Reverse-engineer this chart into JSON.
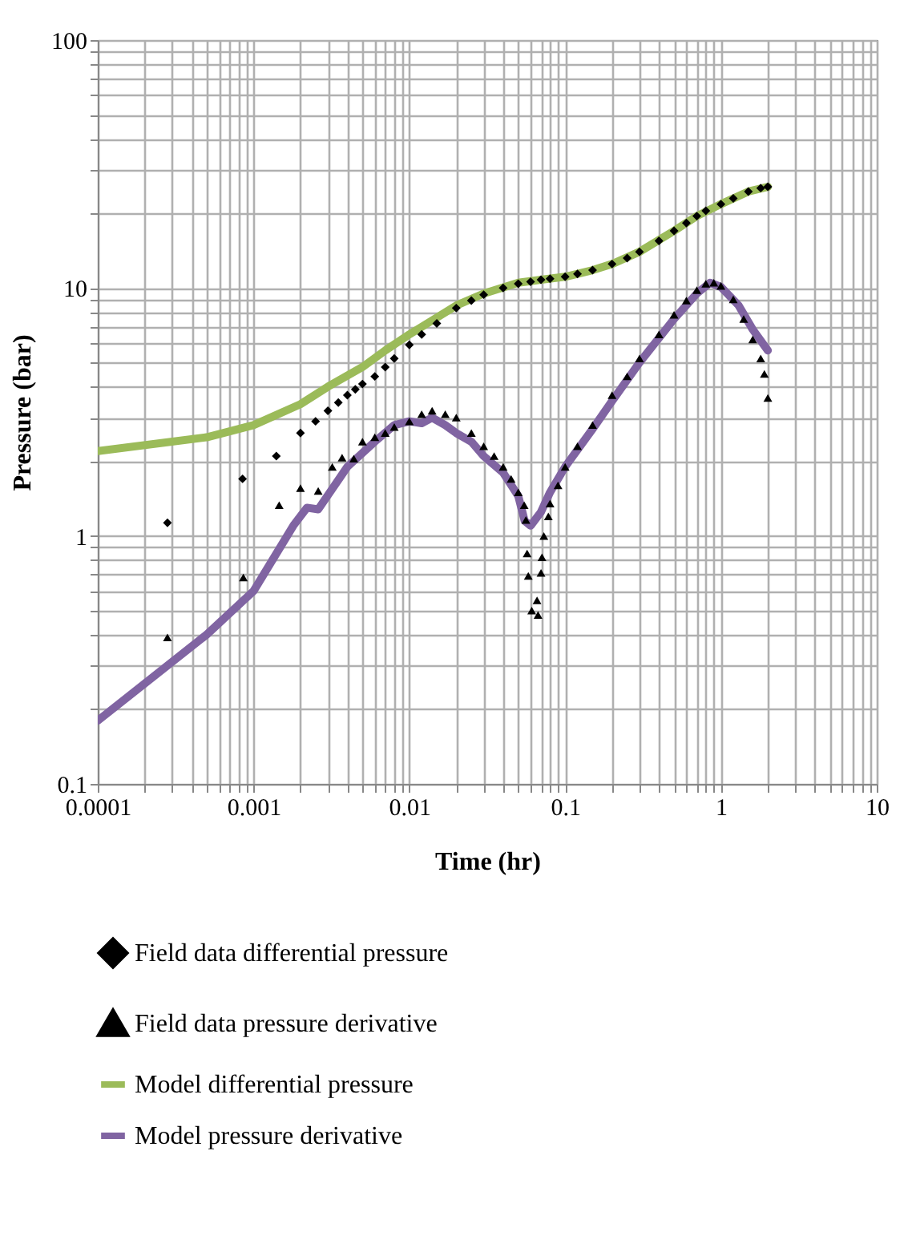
{
  "chart_data": {
    "type": "scatter",
    "xlabel": "Time (hr)",
    "ylabel": "Pressure (bar)",
    "log": "xy",
    "grid": true,
    "legend": "bottom",
    "xlim": [
      0.0001,
      10
    ],
    "xticks": [
      0.0001,
      0.001,
      0.01,
      0.1,
      1,
      10
    ],
    "ylim": [
      0.1,
      100
    ],
    "yticks": [
      0.1,
      1,
      10,
      100
    ],
    "series": [
      {
        "name": "Field data differential pressure",
        "marker": "diamond",
        "color": "#000000",
        "x": [
          0.00028,
          0.00085,
          0.0014,
          0.002,
          0.0025,
          0.003,
          0.0035,
          0.004,
          0.0045,
          0.005,
          0.006,
          0.007,
          0.008,
          0.01,
          0.012,
          0.015,
          0.02,
          0.025,
          0.03,
          0.04,
          0.05,
          0.06,
          0.07,
          0.08,
          0.1,
          0.12,
          0.15,
          0.2,
          0.25,
          0.3,
          0.4,
          0.5,
          0.6,
          0.7,
          0.8,
          1,
          1.2,
          1.5,
          1.8,
          2
        ],
        "values": [
          1.13,
          1.7,
          2.1,
          2.6,
          2.9,
          3.2,
          3.45,
          3.7,
          3.9,
          4.1,
          4.4,
          4.8,
          5.2,
          5.9,
          6.5,
          7.2,
          8.3,
          8.9,
          9.4,
          10.0,
          10.4,
          10.6,
          10.8,
          10.9,
          11.1,
          11.4,
          11.8,
          12.5,
          13.2,
          14,
          15.5,
          17,
          18.3,
          19.5,
          20.5,
          21.8,
          23,
          24.5,
          25.3,
          25.6
        ]
      },
      {
        "name": "Field data pressure derivative",
        "marker": "triangle",
        "color": "#000000",
        "x": [
          0.00028,
          0.00086,
          0.00146,
          0.002,
          0.0026,
          0.0032,
          0.0037,
          0.0044,
          0.005,
          0.006,
          0.007,
          0.008,
          0.01,
          0.012,
          0.014,
          0.017,
          0.02,
          0.025,
          0.03,
          0.035,
          0.04,
          0.045,
          0.05,
          0.0546,
          0.056,
          0.057,
          0.058,
          0.061,
          0.066,
          0.067,
          0.07,
          0.071,
          0.073,
          0.078,
          0.08,
          0.09,
          0.1,
          0.12,
          0.15,
          0.2,
          0.25,
          0.3,
          0.4,
          0.5,
          0.6,
          0.7,
          0.8,
          0.9,
          1,
          1.2,
          1.4,
          1.6,
          1.8,
          1.9,
          2
        ],
        "values": [
          0.39,
          0.68,
          1.33,
          1.56,
          1.52,
          1.9,
          2.07,
          2.05,
          2.4,
          2.5,
          2.6,
          2.75,
          2.9,
          3.1,
          3.2,
          3.1,
          3.0,
          2.6,
          2.3,
          2.1,
          1.9,
          1.7,
          1.5,
          1.33,
          1.16,
          0.85,
          0.69,
          0.5,
          0.55,
          0.48,
          0.71,
          0.82,
          1.0,
          1.2,
          1.35,
          1.6,
          1.9,
          2.3,
          2.8,
          3.7,
          4.4,
          5.2,
          6.5,
          7.8,
          8.9,
          9.8,
          10.4,
          10.5,
          10.2,
          9.0,
          7.5,
          6.2,
          5.2,
          4.5,
          3.6
        ]
      },
      {
        "name": "Model differential pressure",
        "type": "line",
        "color": "#9bbb59",
        "x": [
          0.0001,
          0.0005,
          0.001,
          0.002,
          0.003,
          0.005,
          0.007,
          0.01,
          0.015,
          0.02,
          0.03,
          0.05,
          0.07,
          0.1,
          0.15,
          0.2,
          0.3,
          0.5,
          0.7,
          1,
          1.5,
          2
        ],
        "values": [
          2.2,
          2.5,
          2.8,
          3.4,
          4.0,
          4.8,
          5.6,
          6.5,
          7.6,
          8.5,
          9.5,
          10.5,
          10.8,
          11.1,
          11.8,
          12.5,
          14,
          17,
          19.5,
          21.8,
          24.5,
          25.6
        ]
      },
      {
        "name": "Model pressure derivative",
        "type": "line",
        "color": "#8064a2",
        "x": [
          0.0001,
          0.0005,
          0.001,
          0.0018,
          0.0022,
          0.0026,
          0.004,
          0.006,
          0.008,
          0.01,
          0.012,
          0.014,
          0.017,
          0.02,
          0.025,
          0.03,
          0.04,
          0.05,
          0.055,
          0.06,
          0.07,
          0.08,
          0.1,
          0.15,
          0.2,
          0.3,
          0.5,
          0.7,
          0.85,
          1,
          1.3,
          1.6,
          2
        ],
        "values": [
          0.18,
          0.4,
          0.6,
          1.1,
          1.3,
          1.28,
          1.9,
          2.4,
          2.8,
          2.9,
          2.85,
          3.0,
          2.8,
          2.6,
          2.4,
          2.1,
          1.8,
          1.45,
          1.15,
          1.1,
          1.25,
          1.5,
          1.9,
          2.7,
          3.5,
          5.0,
          7.5,
          9.5,
          10.5,
          10.1,
          8.5,
          6.8,
          5.6
        ]
      }
    ]
  }
}
